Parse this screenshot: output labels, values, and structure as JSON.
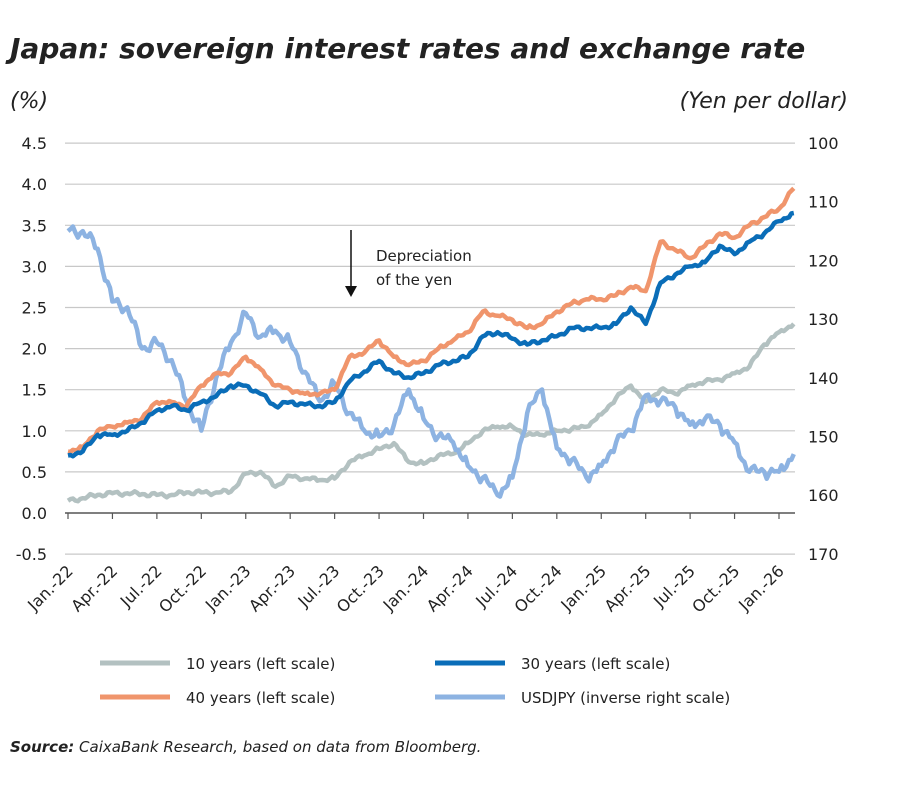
{
  "chart_data": {
    "type": "line",
    "title": "Japan: sovereign interest rates and exchange rate",
    "ylabel_left": "(%)",
    "ylabel_right": "(Yen per dollar)",
    "ylim_left": [
      -0.5,
      4.5
    ],
    "yticks_left": [
      "4.5",
      "4.0",
      "3.5",
      "3.0",
      "2.5",
      "2.0",
      "1.5",
      "1.0",
      "0.5",
      "0.0",
      "-0.5"
    ],
    "ylim_right": [
      170,
      100
    ],
    "yticks_right": [
      "100",
      "110",
      "120",
      "130",
      "140",
      "150",
      "160",
      "170"
    ],
    "right_axis_inverted": true,
    "grid": true,
    "x_start": "2022-01",
    "x_end": "2026-02",
    "xticks": [
      "Jan.-22",
      "Apr.-22",
      "Jul.-22",
      "Oct.-22",
      "Jan.-23",
      "Apr.-23",
      "Jul.-23",
      "Oct.-23",
      "Jan.-24",
      "Apr.-24",
      "Jul.-24",
      "Oct.-24",
      "Jan.-25",
      "Apr.-25",
      "Jul.-25",
      "Oct.-25",
      "Jan.-26"
    ],
    "x": [
      "2022-01",
      "2022-02",
      "2022-03",
      "2022-04",
      "2022-05",
      "2022-06",
      "2022-07",
      "2022-08",
      "2022-09",
      "2022-10",
      "2022-11",
      "2022-12",
      "2023-01",
      "2023-02",
      "2023-03",
      "2023-04",
      "2023-05",
      "2023-06",
      "2023-07",
      "2023-08",
      "2023-09",
      "2023-10",
      "2023-11",
      "2023-12",
      "2024-01",
      "2024-02",
      "2024-03",
      "2024-04",
      "2024-05",
      "2024-06",
      "2024-07",
      "2024-08",
      "2024-09",
      "2024-10",
      "2024-11",
      "2024-12",
      "2025-01",
      "2025-02",
      "2025-03",
      "2025-04",
      "2025-05",
      "2025-06",
      "2025-07",
      "2025-08",
      "2025-09",
      "2025-10",
      "2025-11",
      "2025-12",
      "2026-01",
      "2026-02"
    ],
    "series": [
      {
        "name": "10 years (left scale)",
        "axis": "left",
        "color": "#b3c1c1",
        "values": [
          0.15,
          0.18,
          0.22,
          0.24,
          0.24,
          0.23,
          0.22,
          0.22,
          0.25,
          0.25,
          0.25,
          0.26,
          0.48,
          0.5,
          0.32,
          0.45,
          0.42,
          0.4,
          0.42,
          0.62,
          0.7,
          0.78,
          0.85,
          0.62,
          0.6,
          0.7,
          0.72,
          0.85,
          1.0,
          1.05,
          1.05,
          0.95,
          0.95,
          1.0,
          1.02,
          1.05,
          1.2,
          1.4,
          1.55,
          1.35,
          1.5,
          1.45,
          1.55,
          1.6,
          1.62,
          1.7,
          1.78,
          2.05,
          2.2,
          2.3
        ]
      },
      {
        "name": "30 years (left scale)",
        "axis": "left",
        "color": "#0a6db8",
        "values": [
          0.7,
          0.75,
          0.95,
          0.95,
          1.0,
          1.1,
          1.25,
          1.3,
          1.25,
          1.35,
          1.42,
          1.55,
          1.55,
          1.45,
          1.3,
          1.35,
          1.32,
          1.3,
          1.35,
          1.6,
          1.72,
          1.85,
          1.7,
          1.65,
          1.7,
          1.8,
          1.85,
          1.9,
          2.15,
          2.2,
          2.12,
          2.05,
          2.1,
          2.15,
          2.25,
          2.25,
          2.25,
          2.3,
          2.5,
          2.3,
          2.8,
          2.9,
          3.0,
          3.05,
          3.25,
          3.15,
          3.3,
          3.4,
          3.55,
          3.65
        ]
      },
      {
        "name": "40 years (left scale)",
        "axis": "left",
        "color": "#f0956c",
        "values": [
          0.75,
          0.8,
          1.0,
          1.05,
          1.1,
          1.15,
          1.35,
          1.35,
          1.3,
          1.55,
          1.7,
          1.7,
          1.9,
          1.75,
          1.55,
          1.5,
          1.45,
          1.45,
          1.5,
          1.9,
          1.95,
          2.1,
          1.9,
          1.8,
          1.85,
          2.0,
          2.1,
          2.2,
          2.45,
          2.4,
          2.35,
          2.25,
          2.3,
          2.45,
          2.55,
          2.6,
          2.6,
          2.65,
          2.75,
          2.7,
          3.3,
          3.2,
          3.1,
          3.25,
          3.4,
          3.35,
          3.5,
          3.6,
          3.7,
          3.95
        ]
      },
      {
        "name": "USDJPY (inverse right scale)",
        "axis": "right",
        "color": "#8db3e2",
        "values": [
          115,
          115,
          118,
          127,
          128,
          135,
          134,
          137,
          144,
          149,
          140,
          134,
          129,
          133,
          132,
          134,
          139,
          144,
          141,
          146,
          149,
          150,
          148,
          142,
          147,
          150,
          151,
          155,
          157,
          160,
          157,
          146,
          142,
          152,
          154,
          157,
          155,
          151,
          149,
          143,
          144,
          145,
          148,
          147,
          148,
          151,
          156,
          156,
          156,
          153
        ]
      }
    ],
    "annotation": {
      "text_line1": "Depreciation",
      "text_line2": "of the yen",
      "arrow": "down"
    },
    "legend_position": "bottom",
    "source_label": "Source:",
    "source_text": "CaixaBank Research, based on data from Bloomberg."
  }
}
